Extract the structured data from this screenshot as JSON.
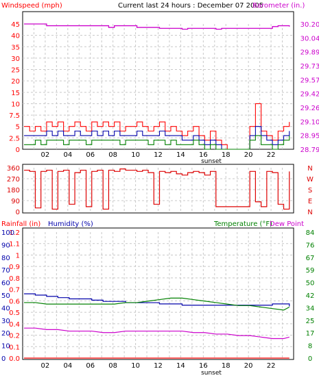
{
  "header": {
    "left_title": "Windspeed (mph)",
    "center_title": "Current last 24 hours : December 07 2005",
    "right_title": "Barometer (in.)"
  },
  "panel3_labels": {
    "rainfall": "Rainfall (in)",
    "humidity": "Humidity (%)",
    "temperature": "Temperature (°F)",
    "dewpoint": "Dew Point"
  },
  "colors": {
    "wind": "#ff0000",
    "wind_avg": "#0000aa",
    "wind_green": "#008000",
    "barometer": "#cc00cc",
    "direction": "#dd0000",
    "humidity": "#0000aa",
    "temperature": "#008000",
    "dewpoint": "#cc00cc",
    "rain": "#ff0000",
    "grid": "#c8c8c8"
  },
  "chart_data": [
    {
      "type": "line",
      "panel": "wind_barometer",
      "title": "Current last 24 hours : December 07 2005",
      "ylabel_left": "Windspeed (mph)",
      "ylabel_right": "Barometer (in.)",
      "x_ticks": [
        "02",
        "04",
        "06",
        "08",
        "10",
        "12",
        "14",
        "16",
        "18",
        "20",
        "22"
      ],
      "x_marker": "sunset",
      "y_left_ticks": [
        "0",
        "2.5",
        "5",
        "7.5",
        "10",
        "15",
        "20",
        "25",
        "30",
        "35",
        "40",
        "45"
      ],
      "y_right_ticks": [
        "28.79",
        "28.95",
        "29.10",
        "29.26",
        "29.42",
        "29.57",
        "29.73",
        "29.89",
        "30.04",
        "30.20"
      ],
      "x": [
        0,
        0.5,
        1,
        1.5,
        2,
        2.5,
        3,
        3.5,
        4,
        4.5,
        5,
        5.5,
        6,
        6.5,
        7,
        7.5,
        8,
        8.5,
        9,
        9.5,
        10,
        10.5,
        11,
        11.5,
        12,
        12.5,
        13,
        13.5,
        14,
        14.5,
        15,
        15.5,
        16,
        16.5,
        17,
        17.5,
        18,
        18.5,
        19,
        19.5,
        20,
        20.5,
        21,
        21.5,
        22,
        22.5,
        23,
        23.5
      ],
      "series": [
        {
          "name": "Windspeed (mph)",
          "axis": "left",
          "values": [
            5,
            4,
            5,
            4,
            6,
            5,
            6,
            4,
            5,
            6,
            5,
            4,
            6,
            5,
            6,
            5,
            6,
            4,
            5,
            5,
            6,
            5,
            4,
            5,
            6,
            4,
            5,
            4,
            3,
            4,
            5,
            3,
            2,
            4,
            2,
            1,
            0,
            0,
            0,
            0,
            5,
            10,
            4,
            3,
            2,
            4,
            5,
            6
          ]
        },
        {
          "name": "Average",
          "axis": "left",
          "values": [
            3,
            3,
            3,
            3,
            4,
            3,
            4,
            3,
            3,
            4,
            3,
            3,
            4,
            3,
            4,
            3,
            4,
            3,
            3,
            3,
            4,
            3,
            3,
            3,
            4,
            3,
            3,
            3,
            2,
            2,
            3,
            2,
            1,
            2,
            1,
            0,
            0,
            0,
            0,
            0,
            3,
            5,
            3,
            2,
            1,
            2,
            3,
            4
          ]
        },
        {
          "name": "Wind low",
          "axis": "left",
          "values": [
            1,
            1,
            2,
            1,
            2,
            2,
            2,
            1,
            2,
            2,
            2,
            1,
            2,
            2,
            2,
            2,
            2,
            1,
            2,
            2,
            2,
            2,
            1,
            2,
            2,
            1,
            2,
            1,
            1,
            1,
            2,
            1,
            0,
            1,
            0,
            0,
            0,
            0,
            0,
            0,
            2,
            3,
            1,
            1,
            0,
            1,
            2,
            3
          ]
        },
        {
          "name": "Barometer (in.)",
          "axis": "right",
          "values": [
            30.2,
            30.2,
            30.2,
            30.2,
            30.18,
            30.18,
            30.18,
            30.18,
            30.18,
            30.18,
            30.18,
            30.18,
            30.18,
            30.18,
            30.18,
            30.16,
            30.18,
            30.18,
            30.18,
            30.18,
            30.16,
            30.16,
            30.16,
            30.16,
            30.15,
            30.15,
            30.15,
            30.15,
            30.14,
            30.15,
            30.15,
            30.15,
            30.15,
            30.15,
            30.14,
            30.15,
            30.15,
            30.15,
            30.15,
            30.15,
            30.15,
            30.15,
            30.15,
            30.15,
            30.17,
            30.18,
            30.18,
            30.17
          ]
        }
      ]
    },
    {
      "type": "line",
      "panel": "wind_direction",
      "y_left_ticks": [
        "0",
        "90",
        "180",
        "270",
        "360"
      ],
      "y_right_ticks": [
        "N",
        "E",
        "S",
        "W",
        "N"
      ],
      "x": [
        0,
        0.5,
        1,
        1.5,
        2,
        2.5,
        3,
        3.5,
        4,
        4.5,
        5,
        5.5,
        6,
        6.5,
        7,
        7.5,
        8,
        8.5,
        9,
        9.5,
        10,
        10.5,
        11,
        11.5,
        12,
        12.5,
        13,
        13.5,
        14,
        14.5,
        15,
        15.5,
        16,
        16.5,
        17,
        17.5,
        18,
        18.5,
        19,
        19.5,
        20,
        20.5,
        21,
        21.5,
        22,
        22.5,
        23,
        23.5
      ],
      "series": [
        {
          "name": "Direction",
          "values": [
            340,
            330,
            30,
            330,
            340,
            20,
            330,
            340,
            60,
            320,
            340,
            40,
            330,
            340,
            20,
            340,
            330,
            350,
            340,
            340,
            330,
            340,
            320,
            60,
            330,
            320,
            330,
            310,
            300,
            320,
            330,
            320,
            300,
            330,
            40,
            40,
            40,
            40,
            40,
            40,
            330,
            80,
            40,
            330,
            320,
            60,
            20,
            330
          ]
        }
      ]
    },
    {
      "type": "line",
      "panel": "rain_humidity_temp",
      "ylabel_left": "Rainfall (in)",
      "ylabel_left2": "Humidity (%)",
      "ylabel_right": "Temperature (°F)",
      "ylabel_right2": "Dew Point",
      "y_left_ticks": [
        "0.0",
        "0.1",
        "0.2",
        "0.4",
        "0.5",
        "0.6",
        "0.7",
        "0.8",
        "0.9",
        "1",
        "1.1",
        "1.2"
      ],
      "y_left2_ticks": [
        "0",
        "10",
        "20",
        "30",
        "40",
        "50",
        "60",
        "70",
        "80",
        "90",
        "100"
      ],
      "y_right_ticks": [
        "0",
        "8",
        "17",
        "25",
        "34",
        "42",
        "50",
        "59",
        "67",
        "76",
        "84"
      ],
      "x": [
        0,
        1,
        2,
        3,
        4,
        5,
        6,
        7,
        8,
        9,
        10,
        11,
        12,
        13,
        14,
        15,
        16,
        17,
        18,
        19,
        20,
        21,
        22,
        23,
        23.5
      ],
      "series": [
        {
          "name": "Humidity (%)",
          "axis": "left2",
          "values": [
            51,
            50,
            49,
            48,
            47,
            47,
            46,
            45,
            45,
            44,
            44,
            44,
            43,
            43,
            42,
            42,
            42,
            42,
            42,
            42,
            42,
            42,
            43,
            43,
            41
          ]
        },
        {
          "name": "Temperature (°F)",
          "axis": "right",
          "values": [
            37,
            37,
            36,
            36,
            36,
            36,
            36,
            36,
            36,
            37,
            37,
            38,
            39,
            40,
            40,
            39,
            38,
            37,
            36,
            35,
            35,
            34,
            33,
            32,
            34
          ]
        },
        {
          "name": "Dew Point",
          "axis": "right",
          "values": [
            20,
            20,
            19,
            19,
            18,
            18,
            18,
            17,
            17,
            18,
            18,
            18,
            18,
            18,
            18,
            17,
            17,
            16,
            16,
            15,
            15,
            14,
            13,
            13,
            14
          ]
        },
        {
          "name": "Rainfall (in)",
          "axis": "left",
          "values": [
            0,
            0,
            0,
            0,
            0,
            0,
            0,
            0,
            0,
            0,
            0,
            0,
            0,
            0,
            0,
            0,
            0,
            0,
            0,
            0,
            0,
            0,
            0,
            0,
            0
          ]
        }
      ]
    }
  ]
}
